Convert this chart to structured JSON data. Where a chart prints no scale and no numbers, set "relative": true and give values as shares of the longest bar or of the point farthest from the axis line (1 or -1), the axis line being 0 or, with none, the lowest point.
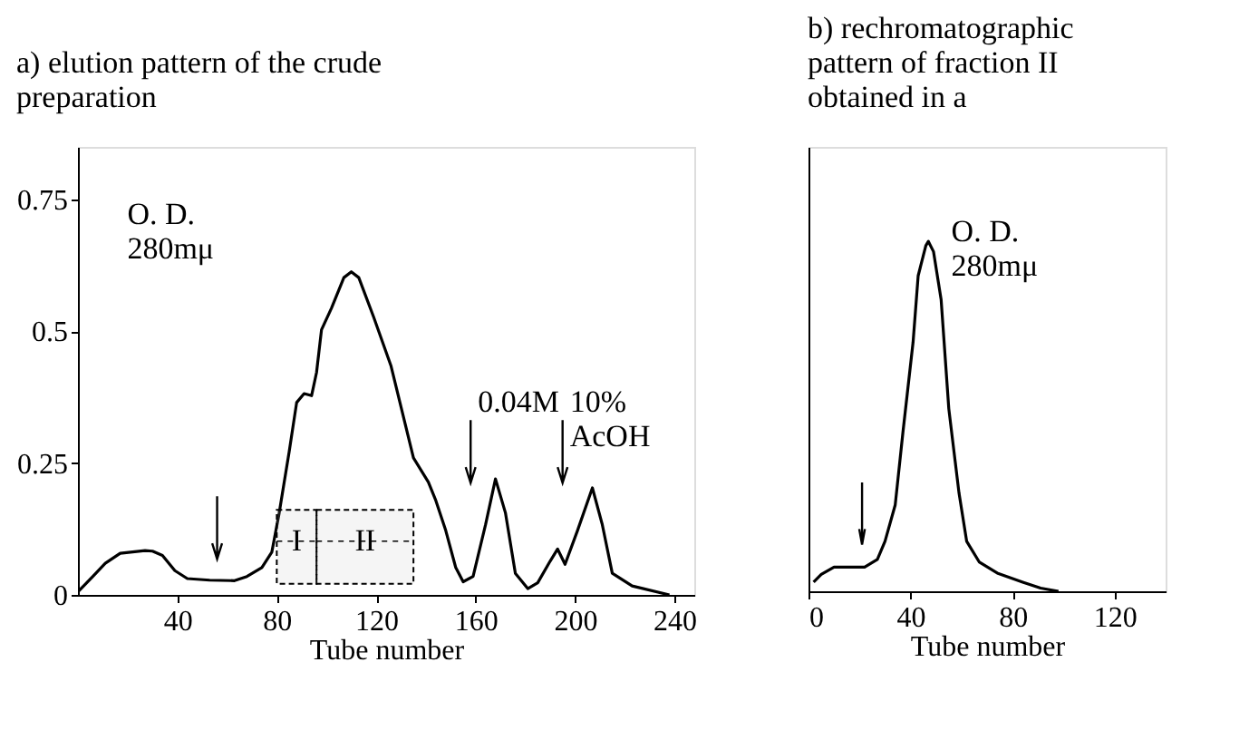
{
  "chart_data": [
    {
      "type": "line",
      "title": "a) elution pattern of the crude preparation",
      "xlabel": "Tube number",
      "ylabel": "O. D.\n280mμ",
      "color": "#000000",
      "grid": false,
      "marker": "none",
      "line_style": "solid",
      "x": [
        0,
        6,
        11,
        17,
        27,
        30,
        34,
        39,
        44,
        53,
        63,
        68,
        74,
        78,
        81,
        85,
        88,
        91,
        94,
        96,
        98,
        102,
        107,
        110,
        113,
        119,
        126,
        135,
        141,
        144,
        148,
        152,
        155,
        159,
        164,
        168,
        172,
        176,
        181,
        185,
        190,
        193,
        196,
        201,
        207,
        211,
        215,
        223,
        238
      ],
      "values": [
        0.006,
        0.035,
        0.06,
        0.079,
        0.084,
        0.083,
        0.075,
        0.046,
        0.031,
        0.028,
        0.027,
        0.035,
        0.052,
        0.081,
        0.156,
        0.272,
        0.365,
        0.382,
        0.378,
        0.422,
        0.503,
        0.544,
        0.602,
        0.613,
        0.602,
        0.527,
        0.434,
        0.26,
        0.214,
        0.179,
        0.122,
        0.052,
        0.025,
        0.035,
        0.133,
        0.22,
        0.156,
        0.041,
        0.012,
        0.023,
        0.064,
        0.087,
        0.058,
        0.122,
        0.203,
        0.133,
        0.041,
        0.017,
        0
      ],
      "xlim": [
        0,
        248
      ],
      "xticks": [
        40,
        80,
        120,
        160,
        200,
        240
      ],
      "ylim": [
        0,
        0.85
      ],
      "yticks": [
        0,
        0.25,
        0.5,
        0.75
      ],
      "bands": [
        {
          "axis": "x",
          "from": 80,
          "to": 96,
          "label": "I"
        },
        {
          "axis": "x",
          "from": 96,
          "to": 135,
          "label": "II"
        }
      ],
      "ref_lines": [
        {
          "axis": "x",
          "value": 56,
          "label": null
        },
        {
          "axis": "x",
          "value": 158,
          "label": "0.04M"
        },
        {
          "axis": "x",
          "value": 195,
          "label": "10%\nAcOH"
        }
      ]
    },
    {
      "type": "line",
      "title": "b) rechromatographic pattern of fraction II obtained in a",
      "xlabel": "Tube number",
      "ylabel": "O. D.\n280mμ",
      "color": "#000000",
      "grid": false,
      "marker": "none",
      "line_style": "solid",
      "relative": true,
      "x": [
        2,
        5,
        10,
        15,
        22,
        27,
        30,
        34,
        37,
        41,
        43,
        46,
        47,
        49,
        52,
        55,
        59,
        62,
        67,
        74,
        84,
        91,
        98
      ],
      "values": [
        0.026,
        0.048,
        0.069,
        0.069,
        0.069,
        0.091,
        0.143,
        0.247,
        0.453,
        0.712,
        0.902,
        0.988,
        1,
        0.971,
        0.833,
        0.522,
        0.281,
        0.143,
        0.083,
        0.052,
        0.026,
        0.009,
        0
      ],
      "xlim": [
        0,
        140
      ],
      "xticks": [
        0,
        40,
        80,
        120
      ],
      "ref_lines": [
        {
          "axis": "x",
          "value": 21,
          "label": null
        }
      ]
    }
  ]
}
